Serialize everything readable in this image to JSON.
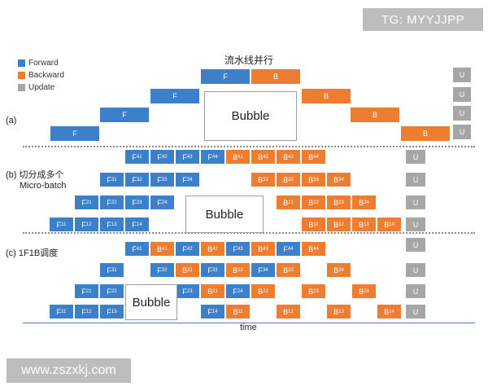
{
  "watermarks": {
    "top": "TG: MYYJJPP",
    "bottom": "www.zszxkj.com"
  },
  "title": "流水线并行",
  "legend": [
    {
      "label": "Forward",
      "color": "#3c80c9"
    },
    {
      "label": "Backward",
      "color": "#ed7d31"
    },
    {
      "label": "Update",
      "color": "#a6a6a6"
    }
  ],
  "sections": {
    "a": {
      "label": "(a)"
    },
    "b": {
      "label_line1": "(b) 切分成多个",
      "label_line2": "Micro-batch"
    },
    "c": {
      "label": "(c) 1F1B调度"
    }
  },
  "bubble_label": "Bubble",
  "time_label": "time",
  "labels": {
    "F": "F",
    "B": "B",
    "U": "U",
    "F41": [
      "F",
      "41"
    ],
    "F42": [
      "F",
      "42"
    ],
    "F43": [
      "F",
      "43"
    ],
    "F44": [
      "F",
      "44"
    ],
    "F31": [
      "F",
      "31"
    ],
    "F32": [
      "F",
      "32"
    ],
    "F33": [
      "F",
      "33"
    ],
    "F34": [
      "F",
      "34"
    ],
    "F21": [
      "F",
      "21"
    ],
    "F22": [
      "F",
      "22"
    ],
    "F23": [
      "F",
      "23"
    ],
    "F24": [
      "F",
      "24"
    ],
    "F11": [
      "F",
      "11"
    ],
    "F12": [
      "F",
      "12"
    ],
    "F13": [
      "F",
      "13"
    ],
    "F14": [
      "F",
      "14"
    ],
    "B41": [
      "B",
      "41"
    ],
    "B42": [
      "B",
      "42"
    ],
    "B43": [
      "B",
      "43"
    ],
    "B44": [
      "B",
      "44"
    ],
    "B31": [
      "B",
      "31"
    ],
    "B32": [
      "B",
      "32"
    ],
    "B33": [
      "B",
      "33"
    ],
    "B34": [
      "B",
      "34"
    ],
    "B21": [
      "B",
      "21"
    ],
    "B22": [
      "B",
      "22"
    ],
    "B23": [
      "B",
      "23"
    ],
    "B24": [
      "B",
      "24"
    ],
    "B11": [
      "B",
      "11"
    ],
    "B12": [
      "B",
      "12"
    ],
    "B13": [
      "B",
      "13"
    ],
    "B14": [
      "B",
      "14"
    ]
  }
}
